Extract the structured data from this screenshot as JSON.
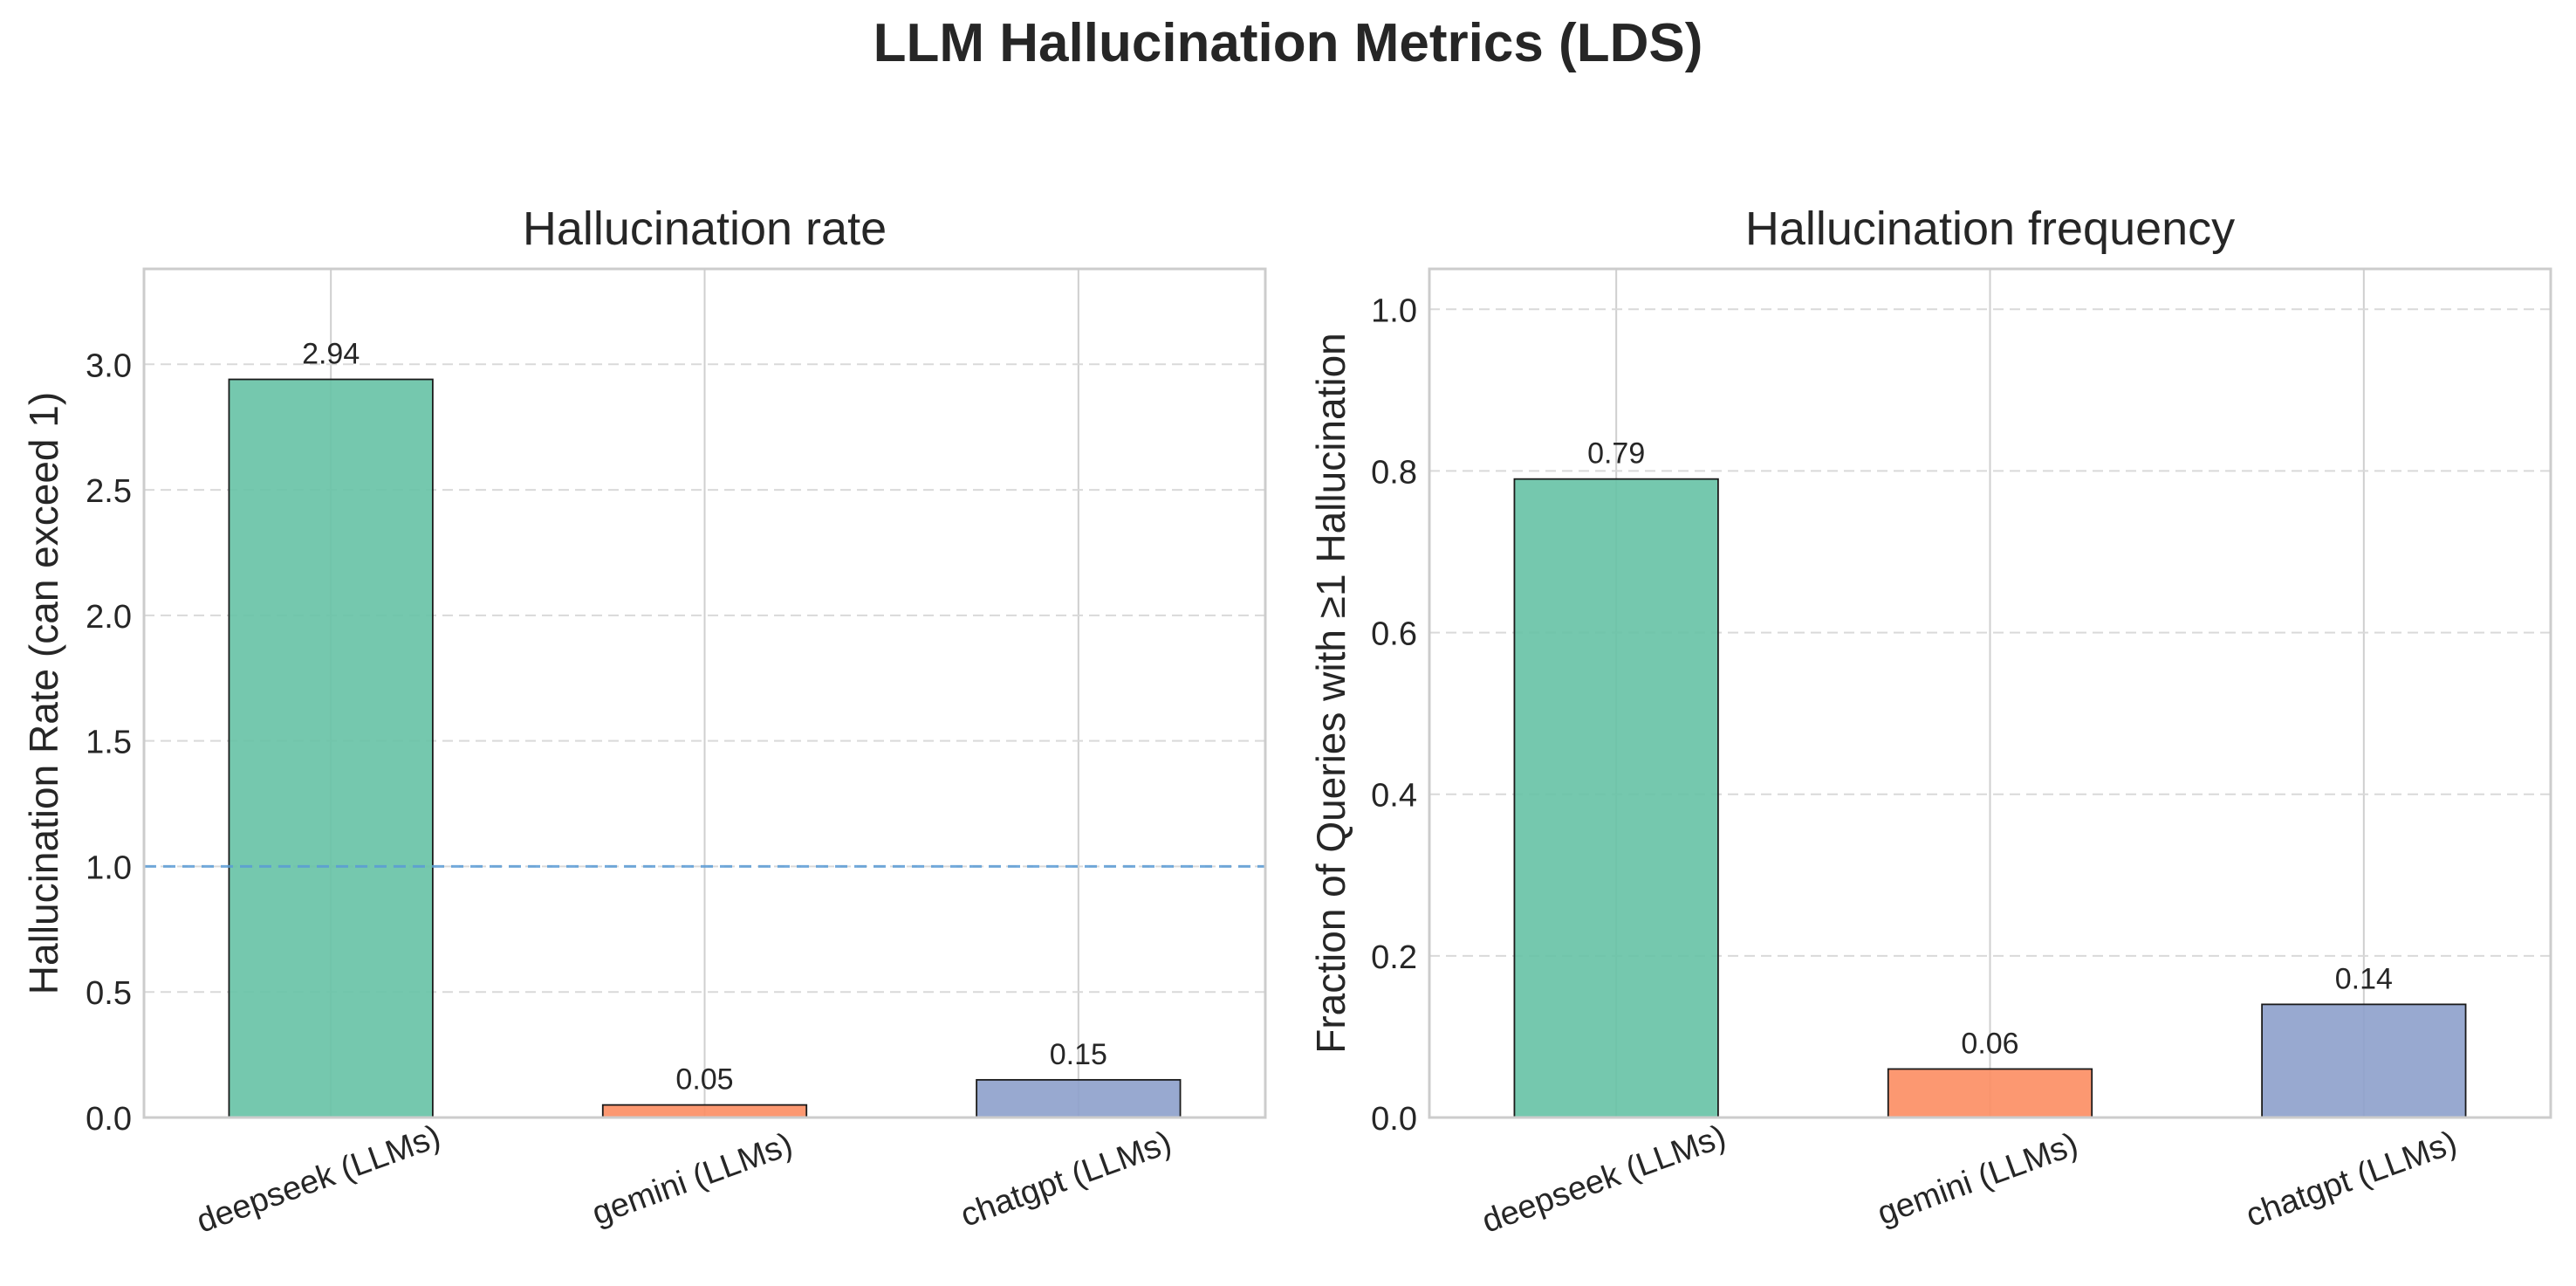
{
  "suptitle": "LLM Hallucination Metrics (LDS)",
  "chart_data": [
    {
      "type": "bar",
      "title": "Hallucination rate",
      "xlabel": "",
      "ylabel": "Hallucination Rate (can exceed 1)",
      "categories": [
        "deepseek (LLMs)",
        "gemini (LLMs)",
        "chatgpt (LLMs)"
      ],
      "values": [
        2.94,
        0.05,
        0.15
      ],
      "value_labels": [
        "2.94",
        "0.05",
        "0.15"
      ],
      "colors": [
        "#66c2a5",
        "#fc8d62",
        "#8da0cb"
      ],
      "ylim": [
        0,
        3.38
      ],
      "yticks": [
        0.0,
        0.5,
        1.0,
        1.5,
        2.0,
        2.5,
        3.0
      ],
      "ytick_labels": [
        "0.0",
        "0.5",
        "1.0",
        "1.5",
        "2.0",
        "2.5",
        "3.0"
      ],
      "reference_line": {
        "y": 1.0,
        "color": "#5b9bd5",
        "style": "dashed"
      },
      "grid": true
    },
    {
      "type": "bar",
      "title": "Hallucination frequency",
      "xlabel": "",
      "ylabel": "Fraction of Queries with ≥1 Hallucination",
      "categories": [
        "deepseek (LLMs)",
        "gemini (LLMs)",
        "chatgpt (LLMs)"
      ],
      "values": [
        0.79,
        0.06,
        0.14
      ],
      "value_labels": [
        "0.79",
        "0.06",
        "0.14"
      ],
      "colors": [
        "#66c2a5",
        "#fc8d62",
        "#8da0cb"
      ],
      "ylim": [
        0,
        1.05
      ],
      "yticks": [
        0.0,
        0.2,
        0.4,
        0.6,
        0.8,
        1.0
      ],
      "ytick_labels": [
        "0.0",
        "0.2",
        "0.4",
        "0.6",
        "0.8",
        "1.0"
      ],
      "grid": true
    }
  ]
}
